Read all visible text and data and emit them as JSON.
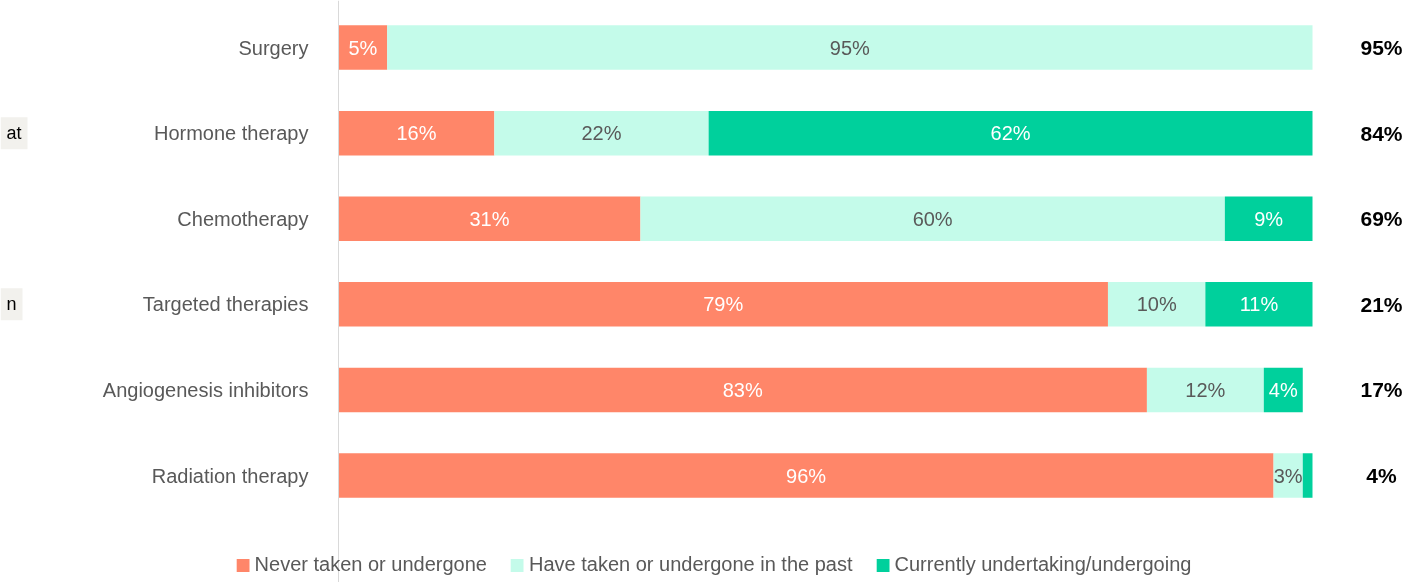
{
  "chart_data": {
    "type": "bar",
    "orientation": "horizontal",
    "stacked": true,
    "categories": [
      "Surgery",
      "Hormone therapy",
      "Chemotherapy",
      "Targeted therapies",
      "Angiogenesis inhibitors",
      "Radiation therapy"
    ],
    "series": [
      {
        "name": "Never taken or undergone",
        "color": "#ff8669",
        "values": [
          5,
          16,
          31,
          79,
          83,
          96
        ],
        "value_labels": [
          "5%",
          "16%",
          "31%",
          "79%",
          "83%",
          "96%"
        ]
      },
      {
        "name": "Have taken or undergone in the past",
        "color": "#c4fbea",
        "values": [
          95,
          22,
          60,
          10,
          12,
          3
        ],
        "value_labels": [
          "95%",
          "22%",
          "60%",
          "10%",
          "12%",
          "3%"
        ]
      },
      {
        "name": "Currently undertaking/undergoing",
        "color": "#00d09c",
        "values": [
          0,
          62,
          9,
          11,
          4,
          1
        ],
        "value_labels": [
          null,
          "62%",
          "9%",
          "11%",
          "4%",
          null
        ]
      }
    ],
    "annotations": [
      "95%",
      "84%",
      "69%",
      "21%",
      "17%",
      "4%",
      "at",
      "n"
    ],
    "legend": "bottom",
    "grid": false
  }
}
